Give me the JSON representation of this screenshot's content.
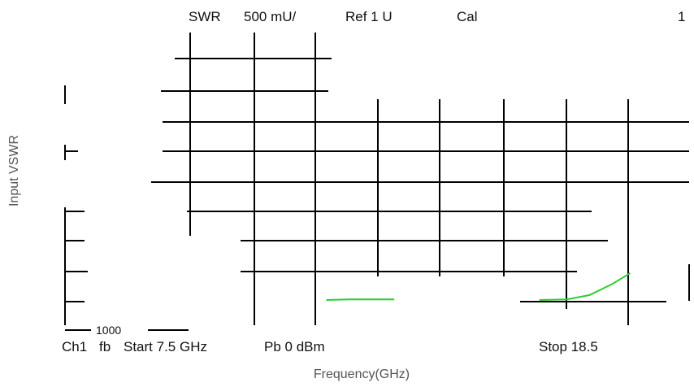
{
  "chart_data": {
    "type": "line",
    "title": "",
    "xlabel": "Frequency(GHz)",
    "ylabel": "Input VSWR",
    "header": {
      "measurement": "SWR",
      "scale": "500 mU/",
      "reference": "Ref 1 U",
      "cal": "Cal",
      "channel_index": "1"
    },
    "footer": {
      "channel": "Ch1",
      "mode": "fb",
      "start": "Start 7.5 GHz",
      "power": "Pb 0 dBm",
      "stop": "Stop 18.5"
    },
    "y_tick_label": "1000",
    "xlim": [
      7.5,
      18.5
    ],
    "ylim": [
      1.0,
      5.0
    ],
    "grid": true,
    "colors": {
      "trace": "#2ecc2e",
      "grid": "#000000"
    },
    "series": [
      {
        "x": [
          10.5,
          11.0,
          11.5,
          12.0,
          15.2,
          15.8,
          16.3,
          16.8,
          17.2
        ],
        "y": [
          1.04,
          1.05,
          1.05,
          1.05,
          1.04,
          1.05,
          1.12,
          1.3,
          1.48
        ]
      }
    ]
  }
}
